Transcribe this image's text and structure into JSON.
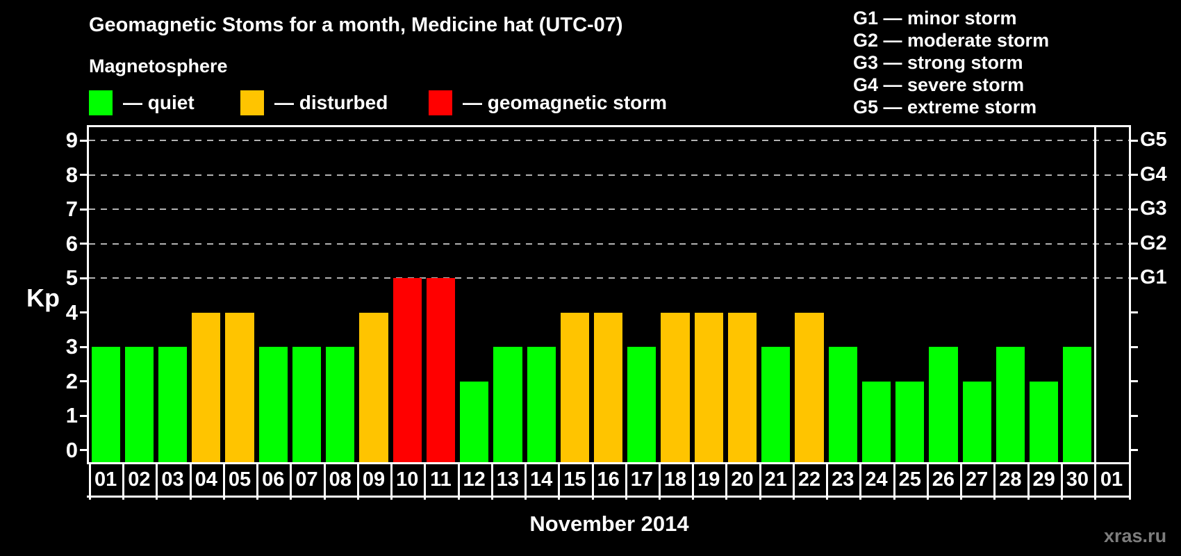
{
  "title": "Geomagnetic Stoms for a month, Medicine hat (UTC-07)",
  "subtitle": "Magnetosphere",
  "legend": {
    "items": [
      {
        "label": "— quiet",
        "color": "#00ff00",
        "status": "quiet"
      },
      {
        "label": "— disturbed",
        "color": "#ffc400",
        "status": "disturbed"
      },
      {
        "label": "— geomagnetic storm",
        "color": "#ff0000",
        "status": "storm"
      }
    ]
  },
  "g_legend": [
    "G1 — minor storm",
    "G2 — moderate storm",
    "G3 — strong storm",
    "G4 — severe storm",
    "G5 — extreme storm"
  ],
  "chart_data": {
    "type": "bar",
    "title": "Geomagnetic Stoms for a month, Medicine hat (UTC-07)",
    "xlabel": "November 2014",
    "ylabel": "Kp",
    "ylim": [
      0,
      9
    ],
    "grid": "dashed horizontal lines at Kp 5-9 (G1-G5)",
    "legend_position": "top-left",
    "categories": [
      "01",
      "02",
      "03",
      "04",
      "05",
      "06",
      "07",
      "08",
      "09",
      "10",
      "11",
      "12",
      "13",
      "14",
      "15",
      "16",
      "17",
      "18",
      "19",
      "20",
      "21",
      "22",
      "23",
      "24",
      "25",
      "26",
      "27",
      "28",
      "29",
      "30",
      "01"
    ],
    "values": [
      3,
      3,
      3,
      4,
      4,
      3,
      3,
      3,
      4,
      5,
      5,
      2,
      3,
      3,
      4,
      4,
      3,
      4,
      4,
      4,
      3,
      4,
      3,
      2,
      2,
      3,
      2,
      3,
      2,
      3,
      null
    ],
    "yticks": [
      0,
      1,
      2,
      3,
      4,
      5,
      6,
      7,
      8,
      9
    ],
    "g_levels": [
      {
        "kp": 5,
        "label": "G1"
      },
      {
        "kp": 6,
        "label": "G2"
      },
      {
        "kp": 7,
        "label": "G3"
      },
      {
        "kp": 8,
        "label": "G4"
      },
      {
        "kp": 9,
        "label": "G5"
      }
    ],
    "status_rule": {
      "storm_min": 5,
      "disturbed_min": 4
    },
    "status_colors": {
      "quiet": "#00ff00",
      "disturbed": "#ffc400",
      "storm": "#ff0000"
    }
  },
  "footer": {
    "month_label": "November 2014",
    "watermark": "xras.ru"
  }
}
